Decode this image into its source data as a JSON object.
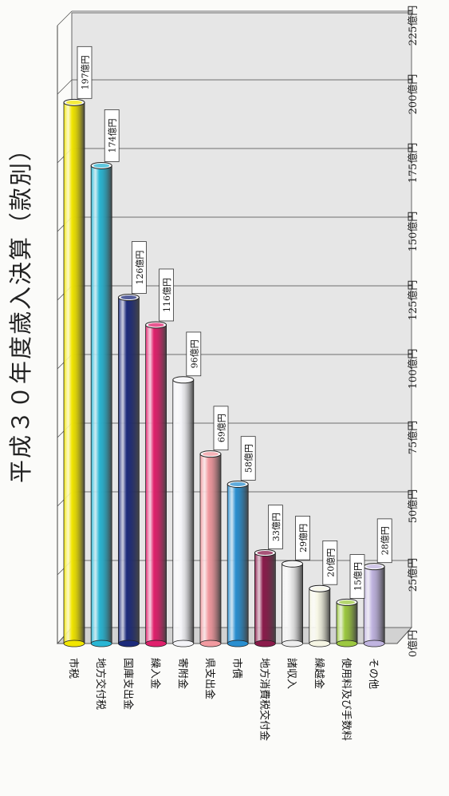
{
  "chart_data": {
    "type": "bar",
    "title": "平成３０年度歳入決算（款別）",
    "xlabel": "",
    "ylabel": "",
    "ylim": [
      0,
      225
    ],
    "grid": true,
    "legend": "none",
    "categories": [
      "市税",
      "地方交付税",
      "国庫支出金",
      "繰入金",
      "寄附金",
      "県支出金",
      "市債",
      "地方消費税交付金",
      "諸収入",
      "繰越金",
      "使用料及び手数料",
      "その他"
    ],
    "values": [
      197,
      174,
      126,
      116,
      96,
      69,
      58,
      33,
      29,
      20,
      15,
      28
    ],
    "value_labels": [
      "197億円",
      "174億円",
      "126億円",
      "116億円",
      "96億円",
      "69億円",
      "58億円",
      "33億円",
      "29億円",
      "20億円",
      "15億円",
      "28億円"
    ],
    "ticks": [
      0,
      25,
      50,
      75,
      100,
      125,
      150,
      175,
      200,
      225
    ],
    "tick_labels": [
      "0億円",
      "25億円",
      "50億円",
      "75億円",
      "100億円",
      "125億円",
      "150億円",
      "175億円",
      "200億円",
      "225億円"
    ],
    "colors": [
      "#f2e600",
      "#29b6d4",
      "#1c2a7a",
      "#e0206c",
      "#f4f4f8",
      "#f29aa0",
      "#2a8fd0",
      "#8a1a4a",
      "#eeeeee",
      "#f6f6e4",
      "#9cc840",
      "#c0b4e0"
    ]
  }
}
